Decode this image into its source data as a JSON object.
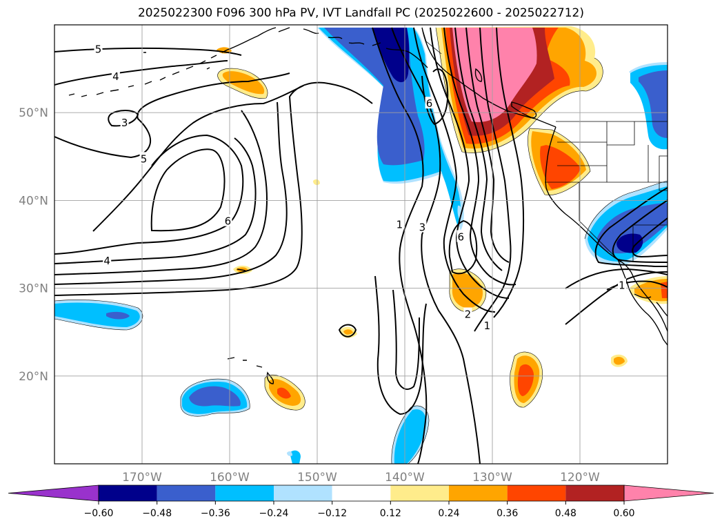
{
  "title": "2025022300 F096 300 hPa PV, IVT Landfall PC (2025022600 - 2025022712)",
  "map": {
    "lon_range": [
      -180,
      -110
    ],
    "lat_range": [
      10,
      60
    ],
    "lon_ticks": [
      {
        "lon": -170,
        "label": "170°W"
      },
      {
        "lon": -160,
        "label": "160°W"
      },
      {
        "lon": -150,
        "label": "150°W"
      },
      {
        "lon": -140,
        "label": "140°W"
      },
      {
        "lon": -130,
        "label": "130°W"
      },
      {
        "lon": -120,
        "label": "120°W"
      }
    ],
    "lat_ticks": [
      {
        "lat": 50,
        "label": "50°N"
      },
      {
        "lat": 40,
        "label": "40°N"
      },
      {
        "lat": 30,
        "label": "30°N"
      },
      {
        "lat": 20,
        "label": "20°N"
      }
    ],
    "gridlines": true,
    "tick_label_color": "#808080"
  },
  "colorbar": {
    "orientation": "horizontal",
    "extend": "both",
    "levels": [
      -0.6,
      -0.48,
      -0.36,
      -0.24,
      -0.12,
      0.12,
      0.24,
      0.36,
      0.48,
      0.6
    ],
    "labels": [
      "−0.60",
      "−0.48",
      "−0.36",
      "−0.24",
      "−0.12",
      "0.12",
      "0.24",
      "0.36",
      "0.48",
      "0.60"
    ],
    "colors": [
      "#9932cc",
      "#00008b",
      "#3a5fcd",
      "#00bfff",
      "#b0e2ff",
      "#ffffff",
      "#ffec8b",
      "#ffa500",
      "#ff4500",
      "#b22222",
      "#ff82ab"
    ]
  },
  "contour_labels": [
    {
      "text": "5",
      "lon": -175,
      "lat": 57.3
    },
    {
      "text": "4",
      "lon": -173,
      "lat": 54.2
    },
    {
      "text": "3",
      "lon": -172,
      "lat": 48.9
    },
    {
      "text": "5",
      "lon": -169.8,
      "lat": 44.8
    },
    {
      "text": "6",
      "lon": -160.2,
      "lat": 37.7
    },
    {
      "text": "4",
      "lon": -174,
      "lat": 33.2
    },
    {
      "text": "6",
      "lon": -137.2,
      "lat": 51.1
    },
    {
      "text": "1",
      "lon": -140.6,
      "lat": 37.3
    },
    {
      "text": "3",
      "lon": -138,
      "lat": 37.0
    },
    {
      "text": "6",
      "lon": -133.6,
      "lat": 35.9
    },
    {
      "text": "2",
      "lon": -132.8,
      "lat": 27.1
    },
    {
      "text": "1",
      "lon": -130.6,
      "lat": 25.8
    },
    {
      "text": "1",
      "lon": -115.2,
      "lat": 30.4
    }
  ],
  "legend_notes": {
    "shading": "IVT landfall principal component",
    "contours": "300 hPa PV"
  }
}
